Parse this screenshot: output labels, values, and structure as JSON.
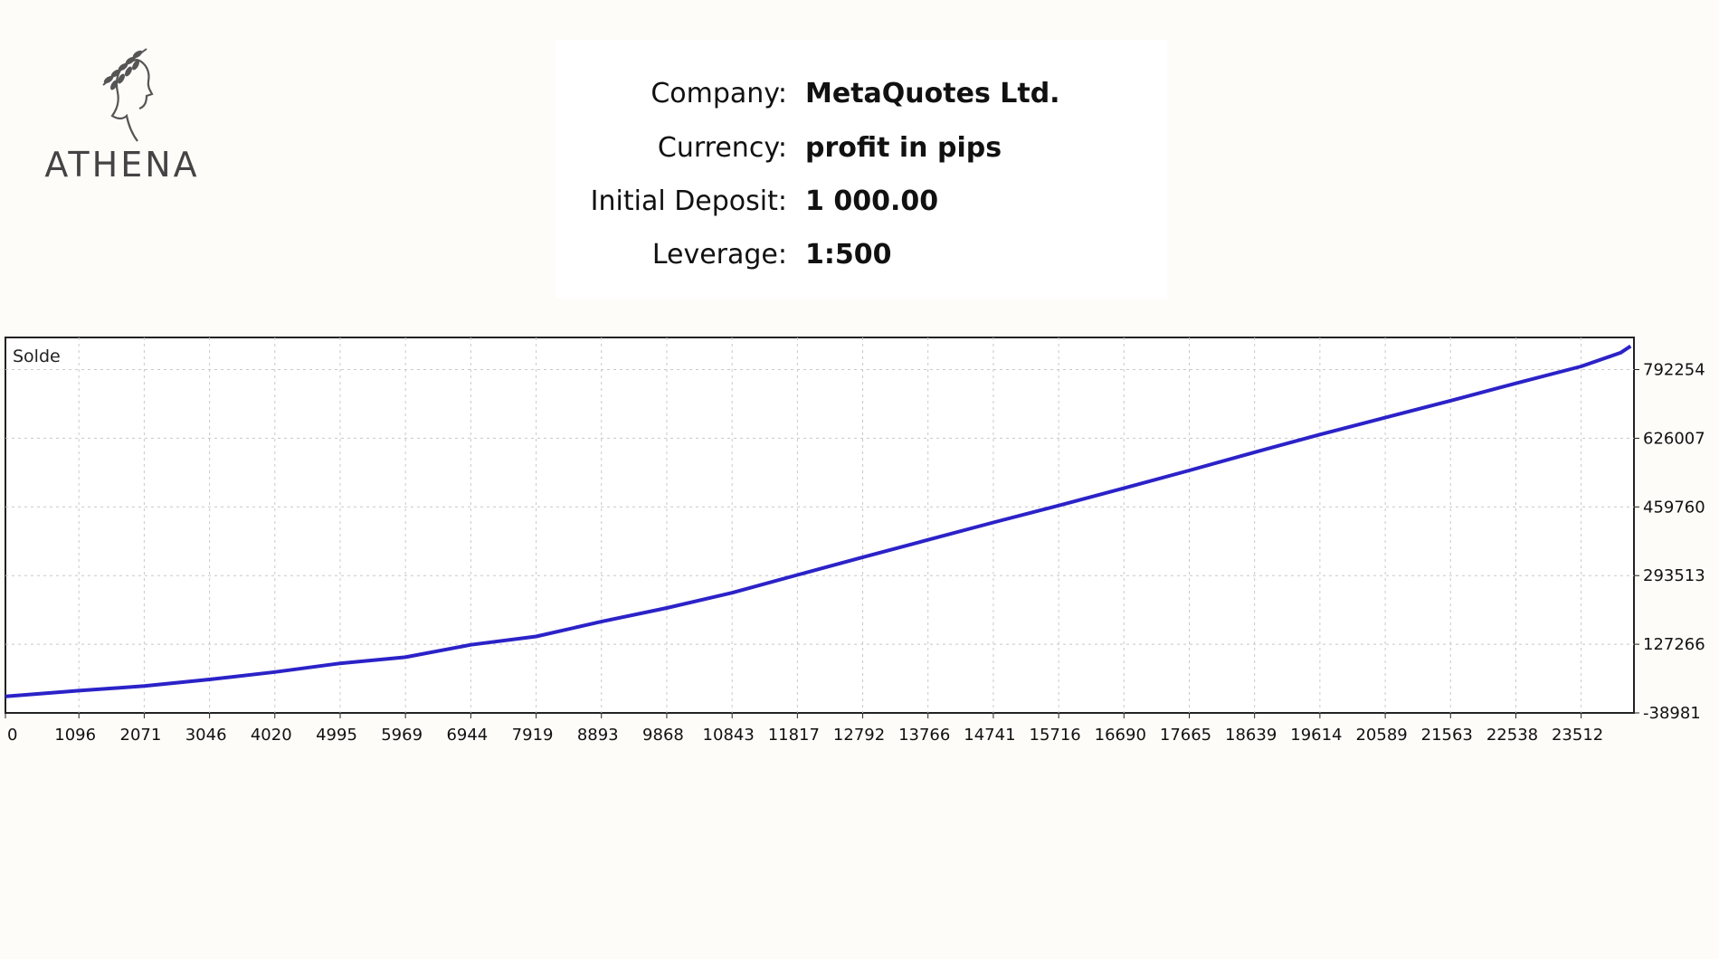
{
  "logo": {
    "text": "ATHENA",
    "icon": "athena-laurel-head-icon"
  },
  "info": {
    "rows": [
      {
        "label": "Company:",
        "value": "MetaQuotes Ltd."
      },
      {
        "label": "Currency:",
        "value": "profit in pips"
      },
      {
        "label": "Initial Deposit:",
        "value": "1 000.00"
      },
      {
        "label": "Leverage:",
        "value": "1:500"
      }
    ]
  },
  "chart_data": {
    "type": "line",
    "series_label": "Solde",
    "x_ticks": [
      "0",
      "1096",
      "2071",
      "3046",
      "4020",
      "4995",
      "5969",
      "6944",
      "7919",
      "8893",
      "9868",
      "10843",
      "11817",
      "12792",
      "13766",
      "14741",
      "15716",
      "16690",
      "17665",
      "18639",
      "19614",
      "20589",
      "21563",
      "22538",
      "23512"
    ],
    "y_ticks": [
      "792254",
      "626007",
      "459760",
      "293513",
      "127266",
      "-38981"
    ],
    "xlim": [
      0,
      24300
    ],
    "ylim": [
      -38981,
      870000
    ],
    "grid": true,
    "series": [
      {
        "name": "Solde",
        "color": "#2b22c8",
        "x": [
          0,
          1096,
          2071,
          3046,
          4020,
          4995,
          5969,
          6944,
          7919,
          8893,
          9868,
          10843,
          11817,
          12792,
          13766,
          14741,
          15716,
          16690,
          17665,
          18639,
          19614,
          20589,
          21563,
          22538,
          23512,
          24100,
          24250
        ],
        "y": [
          1000,
          15000,
          26000,
          42000,
          60000,
          81000,
          96000,
          126000,
          146000,
          182000,
          215000,
          252000,
          295000,
          338000,
          380000,
          422000,
          463000,
          505000,
          548000,
          592000,
          635000,
          676000,
          717000,
          759000,
          800000,
          833000,
          849000
        ]
      }
    ]
  }
}
